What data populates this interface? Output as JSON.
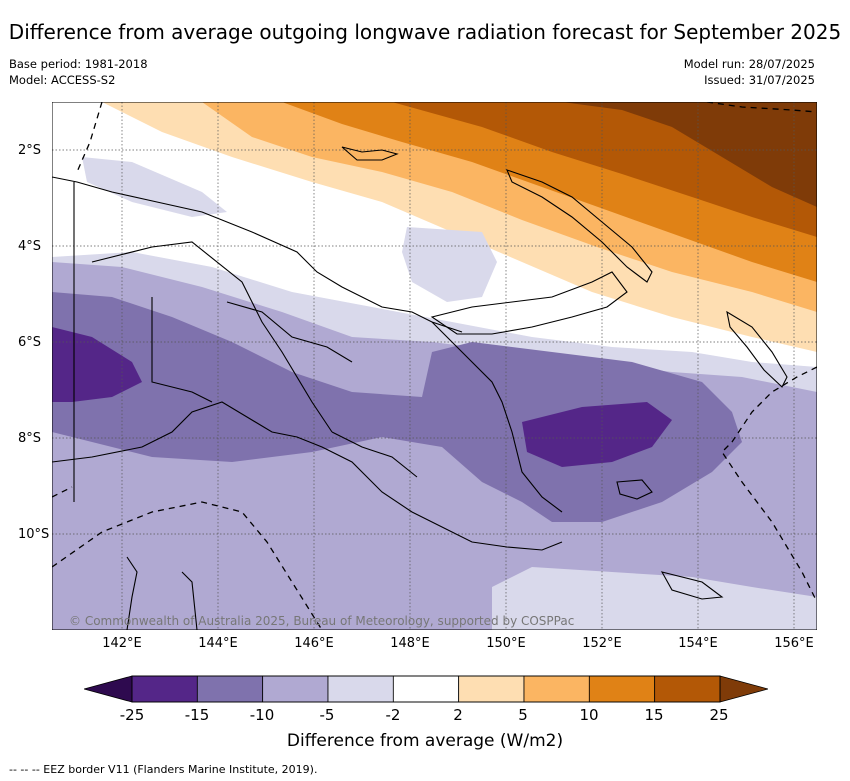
{
  "title": "Difference from average outgoing longwave radiation forecast for September 2025",
  "meta": {
    "base_period": "Base period: 1981-2018",
    "model": "Model: ACCESS-S2",
    "model_run": "Model run: 28/07/2025",
    "issued": "Issued: 31/07/2025"
  },
  "map": {
    "x_ticks": [
      "142°E",
      "144°E",
      "146°E",
      "148°E",
      "150°E",
      "152°E",
      "154°E",
      "156°E"
    ],
    "y_ticks": [
      "2°S",
      "4°S",
      "6°S",
      "8°S",
      "10°S"
    ],
    "copyright": "© Commonwealth of Australia 2025, Bureau of Meteorology, supported by COSPPac",
    "colors": {
      "lt_minus25": "#2e0a4f",
      "minus25_minus15": "#542688",
      "minus15_minus10": "#7f72ad",
      "minus10_minus5": "#b0a9d2",
      "minus5_minus2": "#d9d9eb",
      "minus2_2": "#ffffff",
      "p2_5": "#fedeb2",
      "p5_10": "#fbb562",
      "p10_15": "#e08216",
      "p15_25": "#b35806",
      "gt_25": "#7f3b08"
    }
  },
  "colorbar": {
    "labels": [
      "-25",
      "-15",
      "-10",
      "-5",
      "-2",
      "2",
      "5",
      "10",
      "15",
      "25"
    ],
    "colors": [
      "#542688",
      "#7f72ad",
      "#b0a9d2",
      "#d9d9eb",
      "#ffffff",
      "#fedeb2",
      "#fbb562",
      "#e08216",
      "#b35806"
    ],
    "under_color": "#2e0a4f",
    "over_color": "#7f3b08",
    "title": "Difference from average (W/m2)"
  },
  "footnote": "-- -- -- EEZ border V11 (Flanders Marine Institute, 2019)."
}
